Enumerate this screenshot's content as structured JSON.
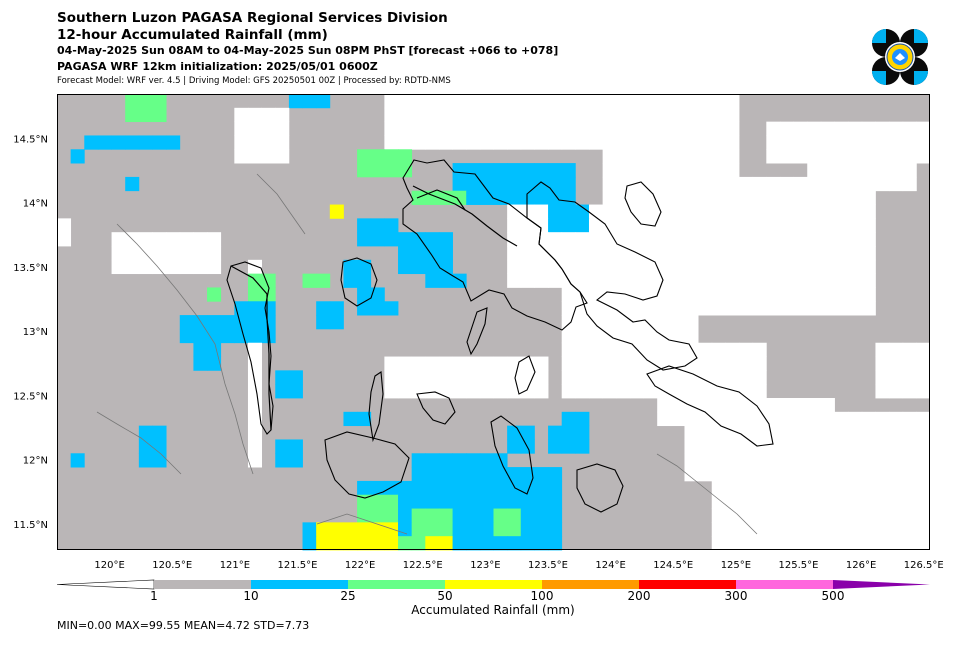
{
  "header": {
    "line1": "Southern Luzon PAGASA Regional Services Division",
    "line2": "12-hour Accumulated Rainfall (mm)",
    "line3": "04-May-2025 Sun 08AM to 04-May-2025 Sun 08PM PhST [forecast +066 to +078]",
    "line4": "PAGASA WRF 12km initialization: 2025/05/01 0600Z",
    "line5": "Forecast Model: WRF ver. 4.5 | Driving Model: GFS 20250501 00Z | Processed by: RDTD-NMS"
  },
  "map": {
    "lon_range": [
      119.58,
      126.55
    ],
    "lat_range": [
      11.3,
      14.85
    ],
    "lon_ticks": [
      "120°E",
      "120.5°E",
      "121°E",
      "121.5°E",
      "122°E",
      "122.5°E",
      "123°E",
      "123.5°E",
      "124°E",
      "124.5°E",
      "125°E",
      "125.5°E",
      "126°E",
      "126.5°E"
    ],
    "lon_tick_values": [
      120,
      120.5,
      121,
      121.5,
      122,
      122.5,
      123,
      123.5,
      124,
      124.5,
      125,
      125.5,
      126,
      126.5
    ],
    "lat_ticks": [
      "11.5°N",
      "12°N",
      "12.5°N",
      "13°N",
      "13.5°N",
      "14°N",
      "14.5°N"
    ],
    "lat_tick_values": [
      11.5,
      12,
      12.5,
      13,
      13.5,
      14,
      14.5
    ],
    "colors": {
      "none": "#ffffff",
      "1": "#bab6b7",
      "10": "#00c0ff",
      "25": "#66ff88",
      "50": "#ffff00",
      "100": "#ff9a00",
      "200": "#ff0000",
      "300": "#ff66dd",
      "500": "#8a00aa"
    }
  },
  "colorbar": {
    "label": "Accumulated Rainfall (mm)",
    "ticks": [
      "1",
      "10",
      "25",
      "50",
      "100",
      "200",
      "300",
      "500"
    ],
    "colors": [
      "#bab6b7",
      "#00c0ff",
      "#66ff88",
      "#ffff00",
      "#ff9a00",
      "#ff0000",
      "#ff66dd"
    ],
    "extend_min_color": "#ffffff",
    "extend_max_color": "#8a00aa"
  },
  "stats": "MIN=0.00   MAX=99.55   MEAN=4.72   STD=7.73"
}
